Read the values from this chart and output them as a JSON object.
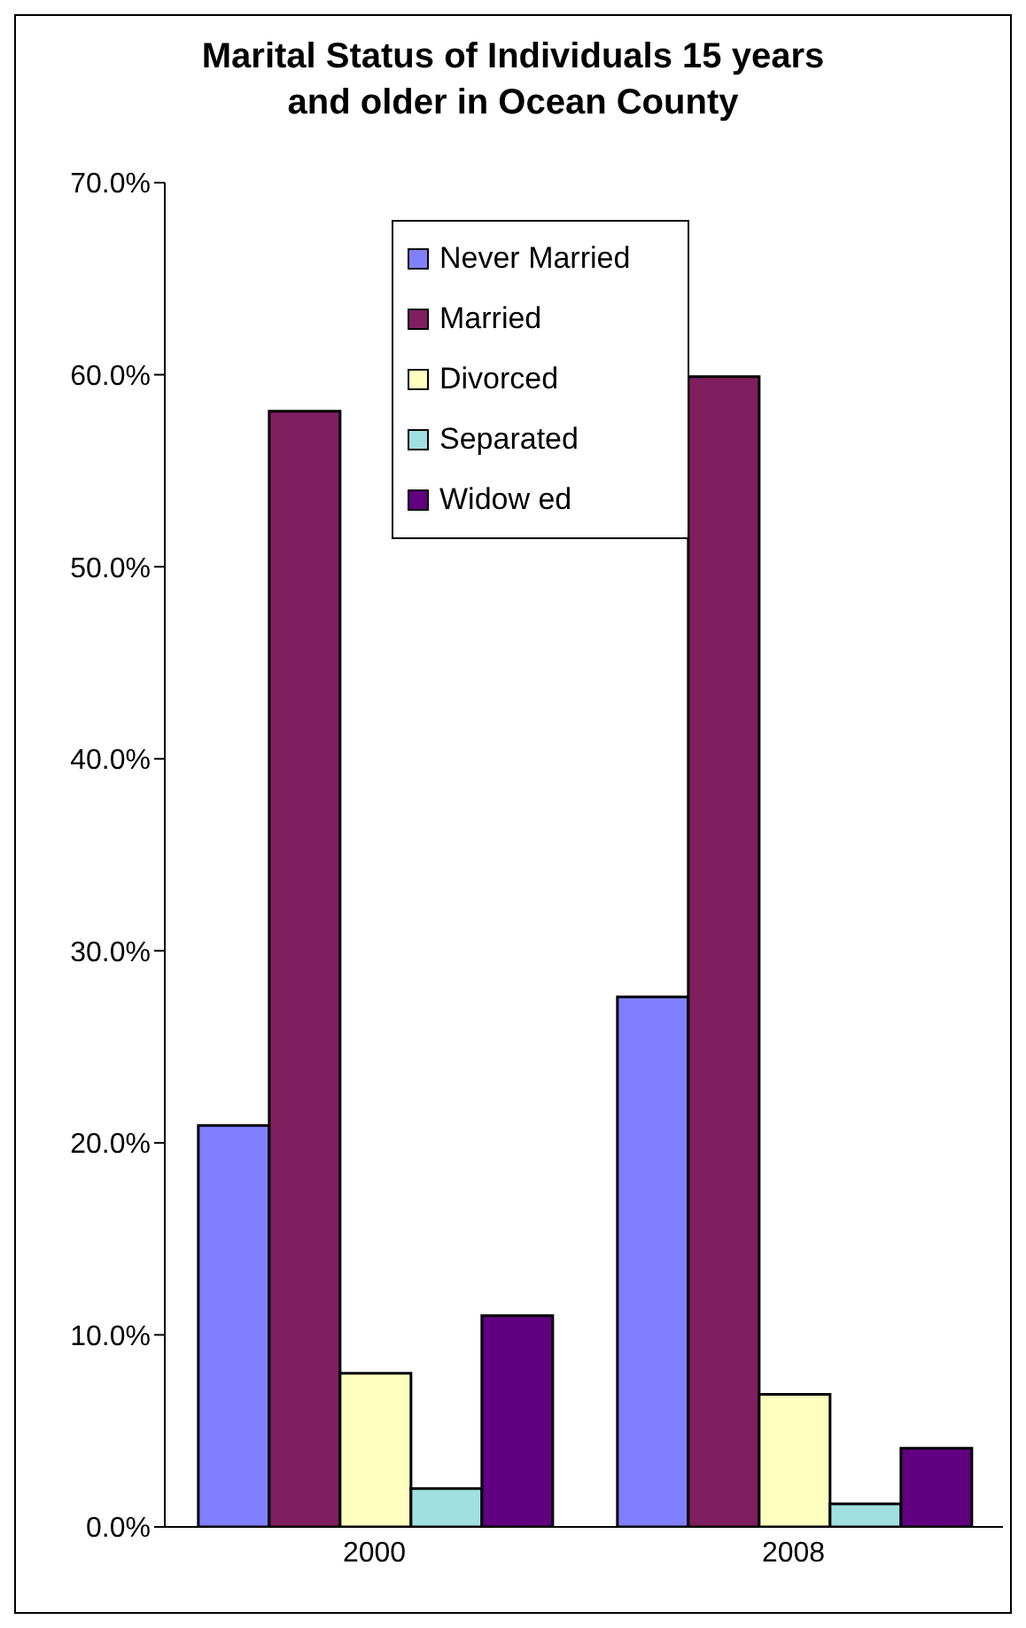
{
  "chart_data": {
    "type": "bar",
    "title": "Marital Status of Individuals 15 years and older in Ocean County",
    "categories": [
      "2000",
      "2008"
    ],
    "series": [
      {
        "name": "Never Married",
        "color": "#8080ff",
        "values": [
          20.9,
          27.6
        ]
      },
      {
        "name": "Married",
        "color": "#7f1f5f",
        "values": [
          58.1,
          59.9
        ]
      },
      {
        "name": "Divorced",
        "color": "#ffffc0",
        "values": [
          8.0,
          6.9
        ]
      },
      {
        "name": "Separated",
        "color": "#a0e0e0",
        "values": [
          2.0,
          1.2
        ]
      },
      {
        "name": "Widow ed",
        "color": "#600080",
        "values": [
          11.0,
          4.1
        ]
      }
    ],
    "ylim": [
      0,
      70
    ],
    "yticks": [
      {
        "value": 0,
        "label": "0.0%"
      },
      {
        "value": 10,
        "label": "10.0%"
      },
      {
        "value": 20,
        "label": "20.0%"
      },
      {
        "value": 30,
        "label": "30.0%"
      },
      {
        "value": 40,
        "label": "40.0%"
      },
      {
        "value": 50,
        "label": "50.0%"
      },
      {
        "value": 60,
        "label": "60.0%"
      },
      {
        "value": 70,
        "label": "70.0%"
      }
    ],
    "grid": false,
    "legend": "top"
  }
}
